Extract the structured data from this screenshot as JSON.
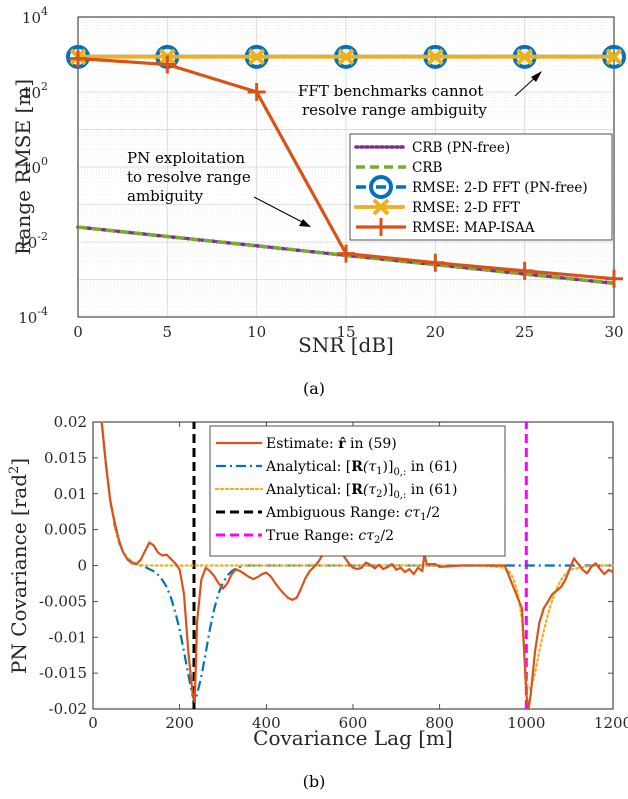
{
  "chart_data": [
    {
      "type": "line",
      "caption": "(a)",
      "xlabel": "SNR [dB]",
      "ylabel": "Range RMSE [m]",
      "xlim": [
        0,
        30
      ],
      "ylim_log10": [
        -4,
        4
      ],
      "yscale": "log",
      "grid": true,
      "legend_position": "right-middle",
      "x_ticks": [
        "0",
        "5",
        "10",
        "15",
        "20",
        "25",
        "30"
      ],
      "y_ticks": [
        {
          "base": "10",
          "exp": "-4"
        },
        {
          "base": "10",
          "exp": "-2"
        },
        {
          "base": "10",
          "exp": "0"
        },
        {
          "base": "10",
          "exp": "2"
        },
        {
          "base": "10",
          "exp": "4"
        }
      ],
      "x": [
        0,
        5,
        10,
        15,
        20,
        25,
        30
      ],
      "series": [
        {
          "name": "CRB (PN-free)",
          "color": "#7E2F8E",
          "style": "dotted",
          "marker": "none",
          "values": [
            0.025,
            0.014,
            0.0079,
            0.0044,
            0.0025,
            0.0014,
            0.00079
          ]
        },
        {
          "name": "CRB",
          "color": "#77AC30",
          "style": "dashed",
          "marker": "none",
          "values": [
            0.025,
            0.014,
            0.0079,
            0.0044,
            0.0025,
            0.0014,
            0.00079
          ]
        },
        {
          "name": "RMSE: 2-D FFT (PN-free)",
          "color": "#0072BD",
          "style": "dashdot",
          "marker": "circle",
          "values": [
            866,
            866,
            866,
            866,
            866,
            866,
            866
          ]
        },
        {
          "name": "RMSE: 2-D FFT",
          "color": "#EDB120",
          "style": "dotted",
          "marker": "x",
          "values": [
            866,
            866,
            866,
            866,
            866,
            866,
            866
          ]
        },
        {
          "name": "RMSE: MAP-ISAA",
          "color": "#D95319",
          "style": "solid",
          "marker": "plus",
          "values": [
            780,
            540,
            100,
            0.0049,
            0.0028,
            0.0017,
            0.00105
          ]
        }
      ],
      "annotations": [
        {
          "lines": [
            "FFT benchmarks cannot",
            "resolve range ambiguity"
          ]
        },
        {
          "lines": [
            "PN exploitation",
            "to resolve range",
            "ambiguity"
          ]
        }
      ]
    },
    {
      "type": "line",
      "caption": "(b)",
      "xlabel": "Covariance Lag [m]",
      "ylabel_parts": [
        "PN Covariance [rad",
        "2",
        "]"
      ],
      "xlim": [
        0,
        1200
      ],
      "ylim": [
        -0.02,
        0.02
      ],
      "grid": false,
      "legend_position": "top-right",
      "x_ticks": [
        "0",
        "200",
        "400",
        "600",
        "800",
        "1000",
        "1200"
      ],
      "y_ticks": [
        "0.02",
        "0.015",
        "0.01",
        "0.005",
        "0",
        "-0.005",
        "-0.01",
        "-0.015",
        "-0.02"
      ],
      "series": [
        {
          "name": "Estimate: r̂ in (59)",
          "color": "#D95319",
          "style": "solid",
          "x": [
            20,
            30,
            40,
            50,
            60,
            70,
            80,
            90,
            100,
            110,
            120,
            130,
            140,
            150,
            160,
            170,
            180,
            190,
            200,
            210,
            220,
            230,
            235,
            240,
            250,
            260,
            270,
            280,
            290,
            300,
            310,
            320,
            330,
            340,
            350,
            360,
            370,
            380,
            390,
            400,
            410,
            420,
            430,
            440,
            450,
            460,
            470,
            480,
            490,
            500,
            510,
            520,
            530,
            540,
            550,
            560,
            570,
            580,
            590,
            600,
            610,
            620,
            630,
            640,
            650,
            660,
            670,
            680,
            690,
            700,
            710,
            720,
            730,
            740,
            750,
            760,
            765,
            770,
            780,
            790,
            800,
            850,
            900,
            950,
            990,
            1000,
            1005,
            1010,
            1020,
            1030,
            1040,
            1050,
            1060,
            1070,
            1080,
            1090,
            1100,
            1110,
            1120,
            1130,
            1140,
            1150,
            1160,
            1170,
            1180,
            1190,
            1200
          ],
          "y": [
            0.02,
            0.014,
            0.009,
            0.006,
            0.0035,
            0.0018,
            0.0008,
            0.0003,
            0.0002,
            0.0008,
            0.002,
            0.0032,
            0.0028,
            0.0018,
            0.0014,
            0.0015,
            0.0009,
            0.0003,
            -0.0006,
            -0.004,
            -0.012,
            -0.018,
            -0.019,
            -0.008,
            -0.002,
            -0.0003,
            -0.0008,
            -0.0015,
            -0.0025,
            -0.0032,
            -0.0025,
            -0.0012,
            -0.0005,
            -0.0008,
            -0.0012,
            -0.0016,
            -0.0019,
            -0.0016,
            -0.0012,
            -0.001,
            -0.0015,
            -0.0024,
            -0.0032,
            -0.0039,
            -0.0045,
            -0.0048,
            -0.0045,
            -0.0032,
            -0.0018,
            -0.0008,
            -0.0002,
            0.0005,
            0.0015,
            0.0025,
            0.0032,
            0.0035,
            0.0028,
            0.0012,
            0.0003,
            -0.0003,
            -0.0005,
            -0.0003,
            0.0004,
            0.0001,
            -0.0004,
            0.0001,
            -0.0005,
            -0.0002,
            0.0002,
            -0.0006,
            -0.0003,
            -0.0009,
            -0.0005,
            -0.0012,
            -0.0003,
            -0.0008,
            0.0015,
            0.0002,
            0.0002,
            0.0002,
            -0.0002,
            0,
            0,
            0,
            -0.006,
            -0.018,
            -0.02,
            -0.018,
            -0.012,
            -0.008,
            -0.006,
            -0.005,
            -0.004,
            -0.0035,
            -0.003,
            -0.002,
            -0.0005,
            0.001,
            0.0002,
            -0.0006,
            -0.0011,
            -0.0002,
            0.0003,
            -0.0005,
            -0.0012,
            -0.0006,
            -0.0009
          ]
        },
        {
          "name": "Analytical: [R(τ1)]0,: in (61)",
          "color": "#0072BD",
          "style": "dashdot",
          "x": [
            20,
            30,
            40,
            50,
            60,
            70,
            80,
            90,
            100,
            110,
            120,
            130,
            140,
            150,
            160,
            170,
            180,
            190,
            200,
            210,
            220,
            230,
            235,
            240,
            250,
            260,
            270,
            280,
            290,
            300,
            310,
            320,
            330,
            340,
            350,
            400,
            600,
            800,
            1000,
            1200
          ],
          "y": [
            0.02,
            0.014,
            0.009,
            0.0055,
            0.0032,
            0.0018,
            0.001,
            0.0005,
            0.0002,
            0,
            -0.0002,
            -0.0005,
            -0.0008,
            -0.0013,
            -0.002,
            -0.003,
            -0.0045,
            -0.0065,
            -0.009,
            -0.012,
            -0.0152,
            -0.0182,
            -0.019,
            -0.018,
            -0.0155,
            -0.0122,
            -0.0088,
            -0.006,
            -0.0038,
            -0.0024,
            -0.0014,
            -0.0008,
            -0.0004,
            -0.0002,
            0,
            0,
            0,
            0,
            0,
            0
          ]
        },
        {
          "name": "Analytical: [R(τ2)]0,: in (61)",
          "color": "#EDB120",
          "style": "dotted",
          "x": [
            20,
            30,
            40,
            50,
            60,
            70,
            80,
            90,
            100,
            110,
            120,
            140,
            200,
            400,
            600,
            800,
            900,
            950,
            960,
            970,
            980,
            990,
            1000,
            1010,
            1020,
            1030,
            1040,
            1050,
            1060,
            1070,
            1080,
            1090,
            1100,
            1150,
            1200
          ],
          "y": [
            0.02,
            0.014,
            0.009,
            0.0055,
            0.0032,
            0.0018,
            0.001,
            0.0005,
            0.0002,
            0.0001,
            0,
            0,
            0,
            0,
            0,
            0,
            0,
            -0.0003,
            -0.0008,
            -0.0018,
            -0.0038,
            -0.0075,
            -0.0165,
            -0.0172,
            -0.015,
            -0.012,
            -0.0092,
            -0.0068,
            -0.0048,
            -0.0032,
            -0.002,
            -0.0012,
            -0.0006,
            0,
            0
          ]
        },
        {
          "name": "Ambiguous Range: cτ1/2",
          "color": "#000000",
          "style": "dashed",
          "x": [
            233,
            233
          ],
          "y": [
            -0.02,
            0.02
          ]
        },
        {
          "name": "True Range: cτ2/2",
          "color": "#FF00FF",
          "style": "dashed",
          "x": [
            1000,
            1000
          ],
          "y": [
            -0.02,
            0.02
          ]
        }
      ]
    }
  ],
  "legend_a": [
    {
      "text": "CRB (PN-free)"
    },
    {
      "text": "CRB"
    },
    {
      "text": "RMSE: 2-D FFT (PN-free)"
    },
    {
      "text": "RMSE: 2-D FFT"
    },
    {
      "text": "RMSE: MAP-ISAA"
    }
  ],
  "legend_b": [
    {
      "pre": "Estimate: ",
      "math": "r̂",
      "sub": "",
      "post": " in (59)"
    },
    {
      "pre": "Analytical: [",
      "math": "R",
      "arg": "(τ",
      "argsub": "1",
      "close": ")]",
      "sub": "0,:",
      "post": " in (61)"
    },
    {
      "pre": "Analytical: [",
      "math": "R",
      "arg": "(τ",
      "argsub": "2",
      "close": ")]",
      "sub": "0,:",
      "post": " in (61)"
    },
    {
      "pre": "Ambiguous Range: ",
      "math": "cτ",
      "argsub": "1",
      "post": "/2"
    },
    {
      "pre": "True Range: ",
      "math": "cτ",
      "argsub": "2",
      "post": "/2"
    }
  ]
}
